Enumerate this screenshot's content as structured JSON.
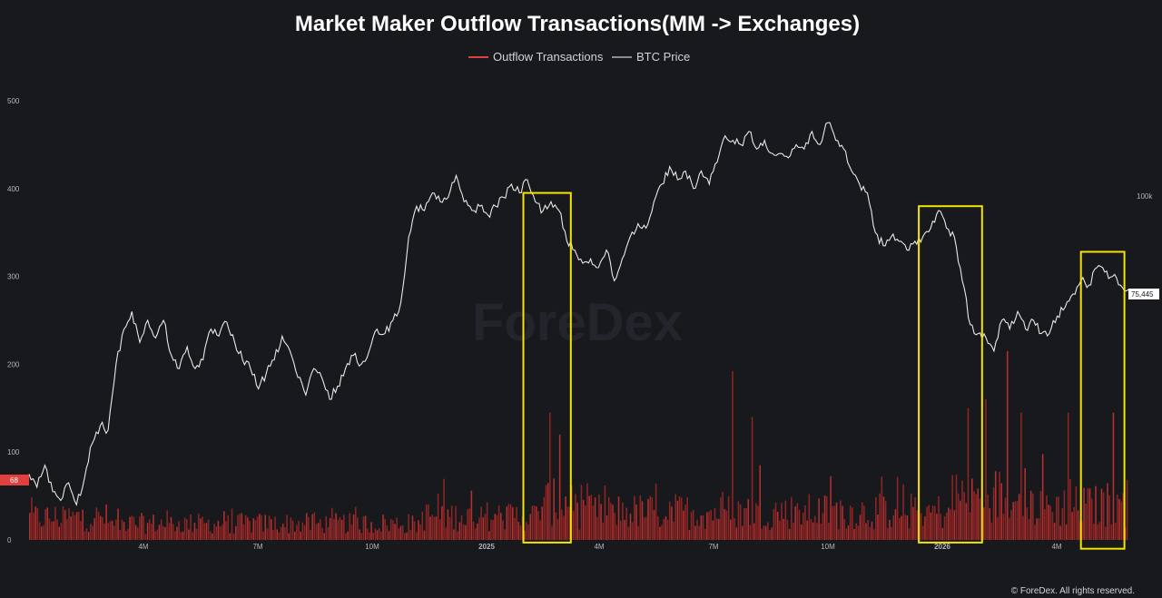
{
  "chart_data": {
    "type": "bar+line",
    "title": "Market Maker Outflow Transactions(MM -> Exchanges)",
    "legend": {
      "placement": "top-center",
      "items": [
        {
          "label": "Outflow Transactions",
          "color": "#e0413f"
        },
        {
          "label": "BTC Price",
          "color": "#8a8d93"
        }
      ]
    },
    "watermark": "ForeDex",
    "footer": "© ForeDex. All rights reserved.",
    "x_ticks": [
      {
        "label": "4M",
        "bold": false
      },
      {
        "label": "7M",
        "bold": false
      },
      {
        "label": "10M",
        "bold": false
      },
      {
        "label": "2025",
        "bold": true
      },
      {
        "label": "4M",
        "bold": false
      },
      {
        "label": "7M",
        "bold": false
      },
      {
        "label": "10M",
        "bold": false
      },
      {
        "label": "2026",
        "bold": true
      },
      {
        "label": "4M",
        "bold": false
      }
    ],
    "left_axis": {
      "ticks": [
        "0",
        "100",
        "200",
        "300",
        "400",
        "500"
      ],
      "range": [
        0,
        500
      ]
    },
    "right_axis": {
      "ticks": [
        "100k"
      ]
    },
    "last_value_labels": {
      "outflow": "68",
      "price": "75,445"
    },
    "price_series": {
      "name": "BTC Price",
      "note": "values in left-axis units as visually read",
      "points": [
        [
          0,
          75
        ],
        [
          1,
          60
        ],
        [
          2,
          85
        ],
        [
          3,
          55
        ],
        [
          4,
          45
        ],
        [
          5,
          65
        ],
        [
          6,
          40
        ],
        [
          7,
          70
        ],
        [
          8,
          110
        ],
        [
          9,
          130
        ],
        [
          10,
          125
        ],
        [
          11,
          200
        ],
        [
          12,
          240
        ],
        [
          13,
          260
        ],
        [
          14,
          225
        ],
        [
          15,
          250
        ],
        [
          16,
          230
        ],
        [
          17,
          250
        ],
        [
          18,
          210
        ],
        [
          19,
          195
        ],
        [
          20,
          220
        ],
        [
          21,
          195
        ],
        [
          22,
          205
        ],
        [
          23,
          240
        ],
        [
          24,
          232
        ],
        [
          25,
          248
        ],
        [
          26,
          225
        ],
        [
          27,
          205
        ],
        [
          28,
          195
        ],
        [
          29,
          172
        ],
        [
          30,
          190
        ],
        [
          31,
          205
        ],
        [
          32,
          232
        ],
        [
          33,
          215
        ],
        [
          34,
          185
        ],
        [
          35,
          165
        ],
        [
          36,
          195
        ],
        [
          37,
          185
        ],
        [
          38,
          160
        ],
        [
          39,
          175
        ],
        [
          40,
          195
        ],
        [
          41,
          210
        ],
        [
          42,
          200
        ],
        [
          43,
          215
        ],
        [
          44,
          240
        ],
        [
          45,
          235
        ],
        [
          46,
          250
        ],
        [
          47,
          270
        ],
        [
          48,
          345
        ],
        [
          49,
          380
        ],
        [
          50,
          375
        ],
        [
          51,
          395
        ],
        [
          52,
          385
        ],
        [
          53,
          390
        ],
        [
          54,
          415
        ],
        [
          55,
          385
        ],
        [
          56,
          375
        ],
        [
          57,
          380
        ],
        [
          58,
          370
        ],
        [
          59,
          380
        ],
        [
          60,
          390
        ],
        [
          61,
          405
        ],
        [
          62,
          395
        ],
        [
          63,
          410
        ],
        [
          64,
          385
        ],
        [
          65,
          375
        ],
        [
          66,
          385
        ],
        [
          67,
          375
        ],
        [
          68,
          340
        ],
        [
          69,
          330
        ],
        [
          70,
          315
        ],
        [
          71,
          320
        ],
        [
          72,
          310
        ],
        [
          73,
          330
        ],
        [
          74,
          295
        ],
        [
          75,
          320
        ],
        [
          76,
          345
        ],
        [
          77,
          360
        ],
        [
          78,
          355
        ],
        [
          79,
          385
        ],
        [
          80,
          405
        ],
        [
          81,
          425
        ],
        [
          82,
          410
        ],
        [
          83,
          420
        ],
        [
          84,
          400
        ],
        [
          85,
          420
        ],
        [
          86,
          405
        ],
        [
          87,
          430
        ],
        [
          88,
          460
        ],
        [
          89,
          455
        ],
        [
          90,
          450
        ],
        [
          91,
          465
        ],
        [
          92,
          445
        ],
        [
          93,
          455
        ],
        [
          94,
          440
        ],
        [
          95,
          440
        ],
        [
          96,
          435
        ],
        [
          97,
          450
        ],
        [
          98,
          445
        ],
        [
          99,
          465
        ],
        [
          100,
          450
        ],
        [
          101,
          475
        ],
        [
          102,
          455
        ],
        [
          103,
          445
        ],
        [
          104,
          420
        ],
        [
          105,
          405
        ],
        [
          106,
          395
        ],
        [
          107,
          350
        ],
        [
          108,
          335
        ],
        [
          109,
          345
        ],
        [
          110,
          340
        ],
        [
          111,
          330
        ],
        [
          112,
          340
        ],
        [
          113,
          345
        ],
        [
          114,
          355
        ],
        [
          115,
          375
        ],
        [
          116,
          355
        ],
        [
          117,
          345
        ],
        [
          118,
          295
        ],
        [
          119,
          245
        ],
        [
          120,
          235
        ],
        [
          121,
          230
        ],
        [
          122,
          215
        ],
        [
          123,
          250
        ],
        [
          124,
          240
        ],
        [
          125,
          260
        ],
        [
          126,
          240
        ],
        [
          127,
          250
        ],
        [
          128,
          235
        ],
        [
          129,
          235
        ],
        [
          130,
          255
        ],
        [
          131,
          265
        ],
        [
          132,
          280
        ],
        [
          133,
          295
        ],
        [
          134,
          290
        ],
        [
          135,
          310
        ],
        [
          136,
          305
        ],
        [
          137,
          300
        ],
        [
          138,
          290
        ],
        [
          139,
          285
        ]
      ]
    },
    "outflow_series": {
      "name": "Outflow Transactions",
      "note": "daily bar heights; deterministic approximation of visual pattern",
      "count": 560,
      "spikes": [
        {
          "i": 265,
          "v": 145
        },
        {
          "i": 270,
          "v": 120
        },
        {
          "i": 358,
          "v": 192
        },
        {
          "i": 368,
          "v": 140
        },
        {
          "i": 372,
          "v": 85
        },
        {
          "i": 478,
          "v": 150
        },
        {
          "i": 487,
          "v": 160
        },
        {
          "i": 498,
          "v": 215
        },
        {
          "i": 505,
          "v": 145
        },
        {
          "i": 529,
          "v": 145
        },
        {
          "i": 552,
          "v": 145
        }
      ],
      "last": 68
    },
    "highlights": [
      {
        "from_x": 62.5,
        "to_x": 68.5,
        "y_bottom": -3,
        "y_top": 395,
        "color": "#f5e400"
      },
      {
        "from_x": 112.5,
        "to_x": 120.5,
        "y_bottom": -3,
        "y_top": 380,
        "color": "#f5e400"
      },
      {
        "from_x": 133,
        "to_x": 138.5,
        "y_bottom": -10,
        "y_top": 328,
        "color": "#f5e400"
      }
    ]
  }
}
